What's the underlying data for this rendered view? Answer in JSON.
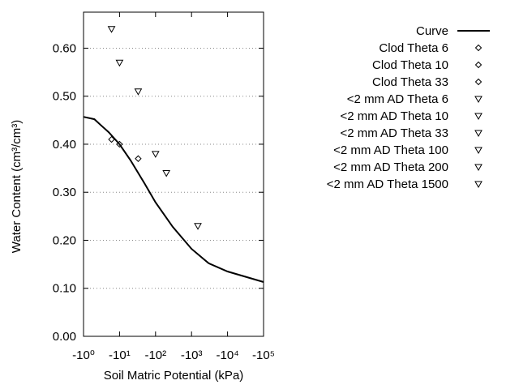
{
  "chart_data": {
    "type": "scatter",
    "x_label": "Soil Matric Potential (kPa)",
    "y_label": "Water Content (cm³/cm³)",
    "x_log_scale": true,
    "xlim": [
      -1,
      -100000
    ],
    "xticks": [
      {
        "value": -1,
        "label": "-10⁰"
      },
      {
        "value": -10,
        "label": "-10¹"
      },
      {
        "value": -100,
        "label": "-10²"
      },
      {
        "value": -1000,
        "label": "-10³"
      },
      {
        "value": -10000,
        "label": "-10⁴"
      },
      {
        "value": -100000,
        "label": "-10⁵"
      }
    ],
    "ylim": [
      0,
      0.675
    ],
    "yticks": [
      {
        "value": 0,
        "label": "0.00"
      },
      {
        "value": 0.1,
        "label": "0.10"
      },
      {
        "value": 0.2,
        "label": "0.20"
      },
      {
        "value": 0.3,
        "label": "0.30"
      },
      {
        "value": 0.4,
        "label": "0.40"
      },
      {
        "value": 0.5,
        "label": "0.50"
      },
      {
        "value": 0.6,
        "label": "0.60"
      }
    ],
    "grid": true,
    "legend": "right",
    "series": [
      {
        "name": "Curve",
        "marker": "line",
        "color": "#000000",
        "x": [
          -1,
          -2,
          -3,
          -5,
          -10,
          -20,
          -50,
          -100,
          -300,
          -1000,
          -3000,
          -10000,
          -100000
        ],
        "values": [
          0.457,
          0.452,
          0.44,
          0.425,
          0.4,
          0.367,
          0.318,
          0.279,
          0.228,
          0.182,
          0.152,
          0.135,
          0.113
        ]
      },
      {
        "name": "Clod Theta 6",
        "marker": "diamond",
        "color": "#000000",
        "x": [
          -6
        ],
        "values": [
          0.41
        ]
      },
      {
        "name": "Clod Theta 10",
        "marker": "diamond",
        "color": "#000000",
        "x": [
          -10
        ],
        "values": [
          0.4
        ]
      },
      {
        "name": "Clod Theta 33",
        "marker": "diamond",
        "color": "#000000",
        "x": [
          -33
        ],
        "values": [
          0.37
        ]
      },
      {
        "name": "<2 mm AD Theta 6",
        "marker": "triangle",
        "color": "#000000",
        "x": [
          -6
        ],
        "values": [
          0.64
        ]
      },
      {
        "name": "<2 mm AD Theta 10",
        "marker": "triangle",
        "color": "#000000",
        "x": [
          -10
        ],
        "values": [
          0.57
        ]
      },
      {
        "name": "<2 mm AD Theta 33",
        "marker": "triangle",
        "color": "#000000",
        "x": [
          -33
        ],
        "values": [
          0.51
        ]
      },
      {
        "name": "<2 mm AD Theta 100",
        "marker": "triangle",
        "color": "#000000",
        "x": [
          -100
        ],
        "values": [
          0.38
        ]
      },
      {
        "name": "<2 mm AD Theta 200",
        "marker": "triangle",
        "color": "#000000",
        "x": [
          -200
        ],
        "values": [
          0.34
        ]
      },
      {
        "name": "<2 mm AD Theta 1500",
        "marker": "triangle",
        "color": "#000000",
        "x": [
          -1500
        ],
        "values": [
          0.23
        ]
      }
    ]
  }
}
